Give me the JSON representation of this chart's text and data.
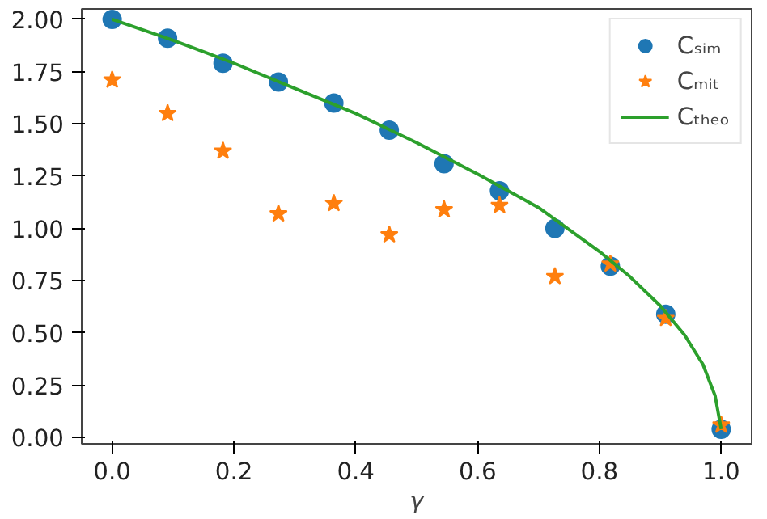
{
  "chart_data": {
    "type": "scatter",
    "xlabel": "γ",
    "xlim": [
      -0.05,
      1.05
    ],
    "ylim": [
      -0.03,
      2.05
    ],
    "xticks": [
      {
        "value": 0,
        "label": "0.0"
      },
      0.2,
      0.4,
      0.6,
      0.8,
      {
        "value": 1,
        "label": "1.0"
      }
    ],
    "yticks": [
      {
        "value": 0,
        "label": "0.00"
      },
      0.25,
      {
        "value": 0.5,
        "label": "0.50"
      },
      0.75,
      {
        "value": 1,
        "label": "1.00"
      },
      1.25,
      {
        "value": 1.5,
        "label": "1.50"
      },
      1.75,
      {
        "value": 2,
        "label": "2.00"
      }
    ],
    "grid": false,
    "legend": "top right",
    "series": [
      {
        "name": "Cₛᵢₘ",
        "marker": "circle",
        "color": "#1f77b4",
        "x": [
          0,
          0.091,
          0.182,
          0.273,
          0.364,
          0.455,
          0.545,
          0.636,
          0.727,
          0.818,
          0.909,
          1.0
        ],
        "values": [
          2.0,
          1.91,
          1.79,
          1.7,
          1.6,
          1.47,
          1.31,
          1.18,
          1.0,
          0.82,
          0.59,
          0.04
        ]
      },
      {
        "name": "Cₘᵢₜ",
        "marker": "star",
        "color": "#ff7f0e",
        "x": [
          0,
          0.091,
          0.182,
          0.273,
          0.364,
          0.455,
          0.545,
          0.636,
          0.727,
          0.818,
          0.909,
          1.0
        ],
        "values": [
          1.71,
          1.55,
          1.37,
          1.07,
          1.12,
          0.97,
          1.09,
          1.11,
          0.77,
          0.83,
          0.57,
          0.06
        ]
      },
      {
        "name": "Cₜₕₑₒ",
        "type": "line",
        "line_style": "solid",
        "color": "#2ca02c",
        "x": [
          0,
          0.1,
          0.2,
          0.3,
          0.4,
          0.5,
          0.6,
          0.7,
          0.8,
          0.85,
          0.9,
          0.94,
          0.97,
          0.99,
          1.0
        ],
        "values": [
          2.0,
          1.9,
          1.79,
          1.67,
          1.55,
          1.41,
          1.26,
          1.1,
          0.89,
          0.77,
          0.63,
          0.49,
          0.35,
          0.2,
          0.04
        ]
      }
    ]
  }
}
